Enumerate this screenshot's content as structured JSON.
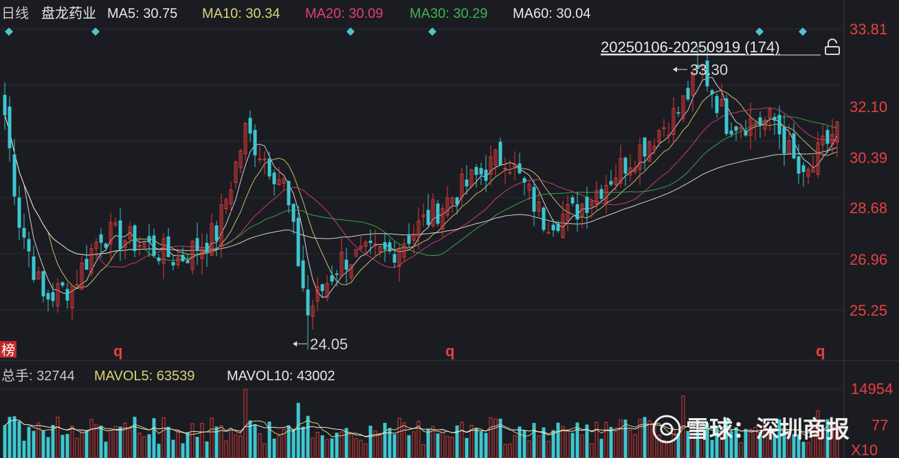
{
  "header": {
    "period": "日线",
    "stock_name": "盘龙药业",
    "ma": [
      {
        "label": "MA5: 30.75",
        "color": "#e8e8e8"
      },
      {
        "label": "MA10: 30.34",
        "color": "#d8d377"
      },
      {
        "label": "MA20: 30.09",
        "color": "#e0407a"
      },
      {
        "label": "MA30: 30.29",
        "color": "#3cb44b"
      },
      {
        "label": "MA60: 30.04",
        "color": "#e8e8e8"
      }
    ]
  },
  "range_label": "20250106-20250919 (174)",
  "lock_icon": "lock-icon",
  "price_axis": [
    "33.81",
    "32.10",
    "30.39",
    "28.68",
    "26.96",
    "25.25"
  ],
  "annotations": {
    "high": "33.30",
    "low": "24.05"
  },
  "bang_label": "榜",
  "q_markers": [
    "q",
    "q",
    "q"
  ],
  "volume_header": {
    "label": "总手: 32744",
    "mavol5": "MAVOL5: 63539",
    "mavol10": "MAVOL10: 43002"
  },
  "volume_axis": {
    "top": "14954",
    "mid_fragment": "77",
    "unit": "X10"
  },
  "watermark": "雪球：深圳商报",
  "colors": {
    "up": "#e03a3a",
    "down": "#3ec6d0",
    "bg": "#1b1c21",
    "grid": "#2c2d33",
    "axis_text": "#e84040",
    "diamond": "#4fc3cc"
  },
  "chart_data": {
    "type": "candlestick",
    "candles": 174,
    "price_range": [
      24.05,
      33.81
    ],
    "high": 33.3,
    "low": 24.05,
    "price_ticks": [
      33.81,
      32.1,
      30.39,
      28.68,
      26.96,
      25.25
    ],
    "close_anchors": [
      [
        0,
        31.2
      ],
      [
        3,
        28.0
      ],
      [
        8,
        25.6
      ],
      [
        14,
        26.0
      ],
      [
        20,
        27.6
      ],
      [
        28,
        27.3
      ],
      [
        36,
        26.8
      ],
      [
        44,
        27.6
      ],
      [
        50,
        30.7
      ],
      [
        58,
        29.1
      ],
      [
        63,
        25.2
      ],
      [
        70,
        26.8
      ],
      [
        80,
        27.0
      ],
      [
        92,
        28.6
      ],
      [
        104,
        30.0
      ],
      [
        112,
        28.0
      ],
      [
        118,
        28.2
      ],
      [
        128,
        29.6
      ],
      [
        140,
        31.3
      ],
      [
        145,
        32.6
      ],
      [
        150,
        31.0
      ],
      [
        160,
        31.0
      ],
      [
        166,
        29.1
      ],
      [
        170,
        30.2
      ],
      [
        173,
        30.8
      ]
    ],
    "volume_range": [
      0,
      14954
    ]
  }
}
